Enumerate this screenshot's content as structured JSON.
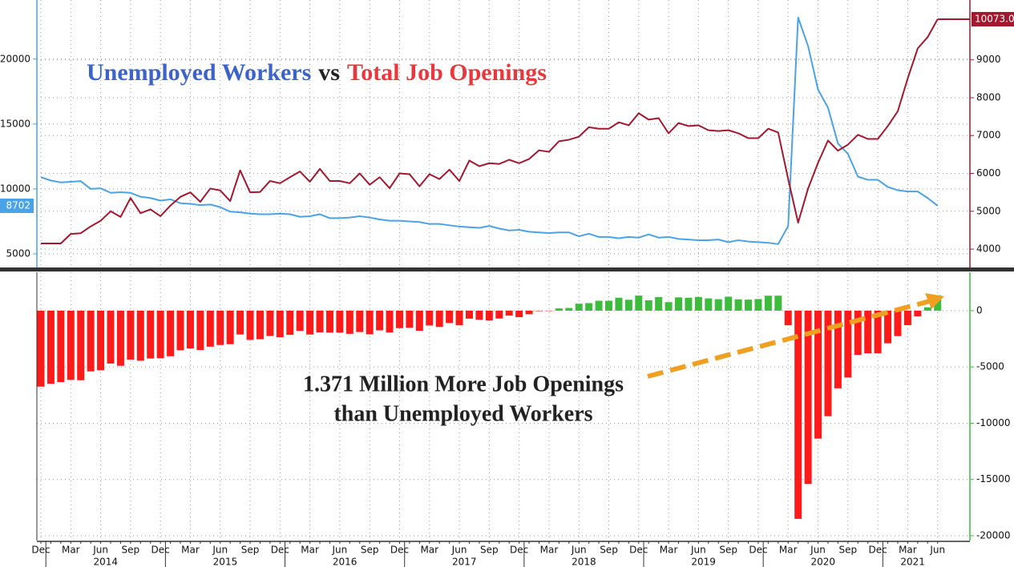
{
  "chart_data": [
    {
      "type": "line",
      "title_connector": "vs",
      "series": [
        {
          "name": "Unemployed Workers",
          "color": "#4aa3e6",
          "title_color": "#3b63c9",
          "axis": "y",
          "values": [
            10900,
            10650,
            10500,
            10550,
            10600,
            10000,
            10050,
            9700,
            9750,
            9700,
            9400,
            9300,
            9100,
            9200,
            8900,
            8850,
            8750,
            8800,
            8600,
            8250,
            8200,
            8100,
            8050,
            8050,
            8100,
            8050,
            7850,
            7900,
            8050,
            7750,
            7750,
            7800,
            7900,
            7800,
            7650,
            7550,
            7550,
            7500,
            7450,
            7300,
            7300,
            7200,
            7100,
            7050,
            7000,
            7150,
            6950,
            6800,
            6850,
            6700,
            6650,
            6600,
            6650,
            6650,
            6350,
            6550,
            6300,
            6300,
            6200,
            6300,
            6250,
            6500,
            6250,
            6300,
            6150,
            6100,
            6050,
            6050,
            6100,
            5900,
            6050,
            5950,
            5900,
            5850,
            5750,
            7150,
            23200,
            21000,
            17650,
            16250,
            13500,
            12700,
            10950,
            10700,
            10700,
            10150,
            9900,
            9800,
            9800,
            9300,
            8702
          ]
        },
        {
          "name": "Total Job Openings",
          "color": "#a3182f",
          "title_color": "#e8383d",
          "axis": "y2",
          "values": [
            4150,
            4150,
            4150,
            4400,
            4420,
            4600,
            4750,
            5000,
            4850,
            5350,
            4950,
            5050,
            4870,
            5150,
            5380,
            5500,
            5250,
            5600,
            5550,
            5270,
            6080,
            5500,
            5510,
            5800,
            5740,
            5900,
            6050,
            5780,
            6120,
            5800,
            5800,
            5740,
            6000,
            5700,
            5900,
            5610,
            6000,
            5980,
            5660,
            5980,
            5850,
            6100,
            5800,
            6340,
            6190,
            6270,
            6250,
            6360,
            6270,
            6380,
            6610,
            6570,
            6850,
            6890,
            6970,
            7220,
            7180,
            7180,
            7350,
            7270,
            7590,
            7420,
            7460,
            7060,
            7330,
            7250,
            7270,
            7140,
            7120,
            7140,
            7060,
            6930,
            6930,
            7180,
            7080,
            5850,
            4700,
            5600,
            6280,
            6870,
            6600,
            6760,
            7020,
            6910,
            6910,
            7250,
            7640,
            8510,
            9300,
            9600,
            10073
          ],
          "value_labels": [
            null,
            null,
            null,
            null,
            null,
            null,
            null,
            null,
            null,
            null,
            null,
            null,
            null,
            null,
            null,
            null,
            null,
            null,
            null,
            null,
            null,
            null,
            null,
            null,
            null,
            null,
            null,
            null,
            null,
            null,
            null,
            null,
            null,
            null,
            null,
            null,
            null,
            null,
            null,
            null,
            null,
            null,
            null,
            null,
            null,
            null,
            null,
            null,
            null,
            null,
            null,
            null,
            null,
            null,
            null,
            null,
            null,
            null,
            null,
            null,
            null,
            null,
            null,
            null,
            null,
            null,
            null,
            null,
            null,
            null,
            null,
            null,
            null,
            null,
            null,
            null,
            null,
            null,
            null,
            null,
            null,
            null,
            null,
            null,
            null,
            null,
            null,
            null,
            null,
            null,
            "10073.0"
          ]
        }
      ],
      "ylim": [
        3950,
        24550
      ],
      "yticks": [
        5000,
        10000,
        15000,
        20000
      ],
      "y2lim": [
        3515,
        10580
      ],
      "y2ticks": [
        4000,
        5000,
        6000,
        7000,
        8000,
        9000
      ],
      "grid": true
    },
    {
      "type": "bar",
      "annotation": [
        "1.371 Million More Job Openings",
        "than Unemployed Workers"
      ],
      "positive_color": "#3dbb3d",
      "negative_color": "#ff1a1a",
      "annotation_arrow_color": "#f0a020",
      "categories": [
        "Dec",
        null,
        null,
        "Mar",
        null,
        null,
        "Jun",
        null,
        null,
        "Sep",
        null,
        null,
        "Dec",
        null,
        null,
        "Mar",
        null,
        null,
        "Jun",
        null,
        null,
        "Sep",
        null,
        null,
        "Dec",
        null,
        null,
        "Mar",
        null,
        null,
        "Jun",
        null,
        null,
        "Sep",
        null,
        null,
        "Dec",
        null,
        null,
        "Mar",
        null,
        null,
        "Jun",
        null,
        null,
        "Sep",
        null,
        null,
        "Dec",
        null,
        null,
        "Mar",
        null,
        null,
        "Jun",
        null,
        null,
        "Sep",
        null,
        null,
        "Dec",
        null,
        null,
        "Mar",
        null,
        null,
        "Jun",
        null,
        null,
        "Sep",
        null,
        null,
        "Dec",
        null,
        null,
        "Mar",
        null,
        null,
        "Jun",
        null,
        null,
        "Sep",
        null,
        null,
        "Dec",
        null,
        null,
        "Mar",
        null,
        null,
        "Jun"
      ],
      "year_labels": [
        "2014",
        "2015",
        "2016",
        "2017",
        "2018",
        "2019",
        "2020",
        "2021"
      ],
      "values": [
        -6750,
        -6500,
        -6350,
        -6150,
        -6180,
        -5400,
        -5300,
        -4700,
        -4900,
        -4350,
        -4450,
        -4250,
        -4230,
        -4050,
        -3520,
        -3350,
        -3500,
        -3200,
        -3050,
        -2980,
        -2120,
        -2600,
        -2540,
        -2250,
        -2360,
        -2150,
        -1800,
        -2120,
        -1930,
        -1950,
        -1950,
        -2060,
        -1900,
        -2100,
        -1750,
        -1940,
        -1550,
        -1520,
        -1790,
        -1320,
        -1450,
        -1100,
        -1300,
        -710,
        -810,
        -880,
        -700,
        -440,
        -580,
        -320,
        -40,
        -30,
        200,
        240,
        620,
        670,
        880,
        880,
        1150,
        970,
        1340,
        920,
        1210,
        760,
        1180,
        1150,
        1220,
        1090,
        1020,
        1240,
        1010,
        980,
        1030,
        1330,
        1330,
        -1300,
        -18500,
        -15400,
        -11370,
        -9380,
        -6900,
        -5940,
        -3930,
        -3790,
        -3790,
        -2900,
        -2260,
        -1290,
        -500,
        300,
        1371
      ],
      "ylim": [
        -20430,
        3410
      ],
      "yticks": [
        0,
        -5000,
        -10000,
        -15000,
        -20000
      ],
      "grid": true
    }
  ]
}
